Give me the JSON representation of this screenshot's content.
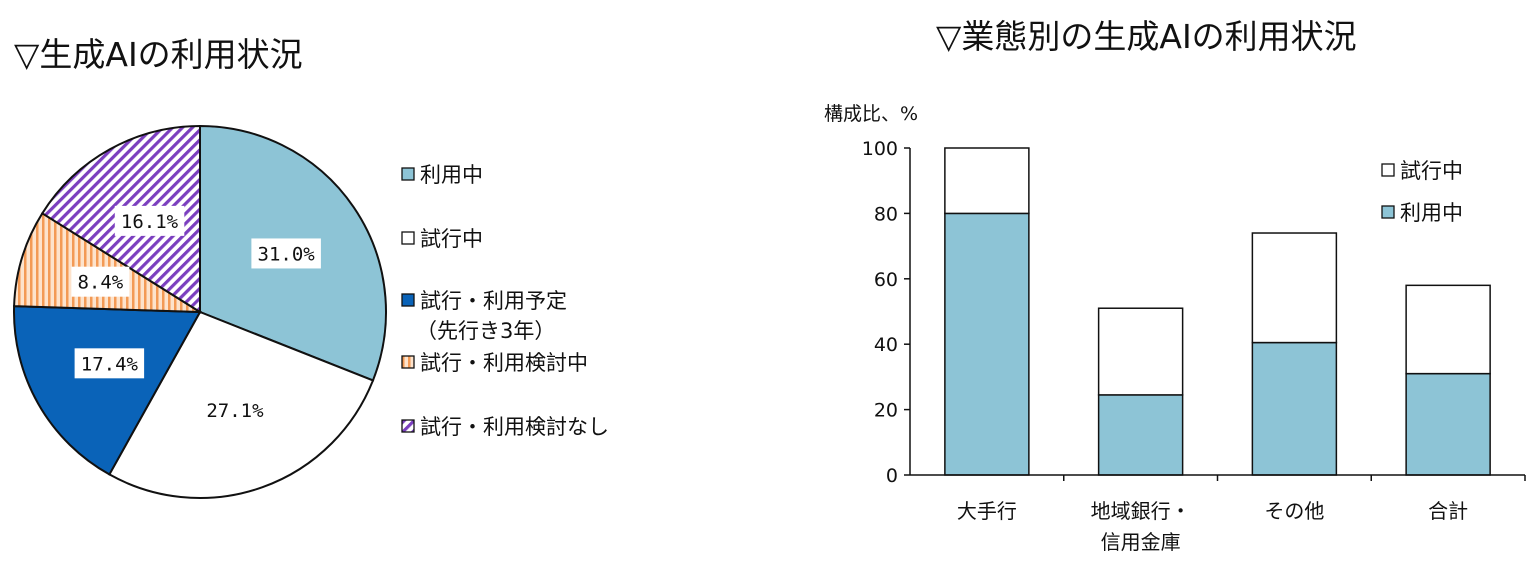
{
  "colors": {
    "using": "#8dc4d6",
    "trial": "#ffffff",
    "planned": "#0a63b8",
    "considering_fill": "#fde3cc",
    "considering_stripe": "#f39a55",
    "not_considering_fill": "#ffffff",
    "not_considering_stripe": "#7b3fbf",
    "outline": "#111111"
  },
  "chart_data": [
    {
      "type": "pie",
      "title": "▽生成AIの利用状況",
      "slices": [
        {
          "key": "using",
          "label": "利用中",
          "value": 31.0,
          "value_label": "31.0%"
        },
        {
          "key": "trial",
          "label": "試行中",
          "value": 27.1,
          "value_label": "27.1%"
        },
        {
          "key": "planned",
          "label": "試行・利用予定",
          "label2": "（先行き3年）",
          "value": 17.4,
          "value_label": "17.4%"
        },
        {
          "key": "considering",
          "label": "試行・利用検討中",
          "value": 8.4,
          "value_label": "8.4%"
        },
        {
          "key": "not_considering",
          "label": "試行・利用検討なし",
          "value": 16.1,
          "value_label": "16.1%"
        }
      ],
      "legend_position": "right"
    },
    {
      "type": "bar",
      "stacked": true,
      "title": "▽業態別の生成AIの利用状況",
      "ylabel": "構成比、%",
      "ylim": [
        0,
        100
      ],
      "yticks": [
        "0",
        "20",
        "40",
        "60",
        "80",
        "100"
      ],
      "categories": [
        {
          "line1": "大手行",
          "line2": ""
        },
        {
          "line1": "地域銀行・",
          "line2": "信用金庫"
        },
        {
          "line1": "その他",
          "line2": ""
        },
        {
          "line1": "合計",
          "line2": ""
        }
      ],
      "series": [
        {
          "name": "利用中",
          "key": "using",
          "values": [
            80,
            24.5,
            40.5,
            31
          ]
        },
        {
          "name": "試行中",
          "key": "trial",
          "values": [
            20,
            26.5,
            33.5,
            27
          ]
        }
      ],
      "legend": [
        "試行中",
        "利用中"
      ],
      "legend_position": "top-right"
    }
  ]
}
